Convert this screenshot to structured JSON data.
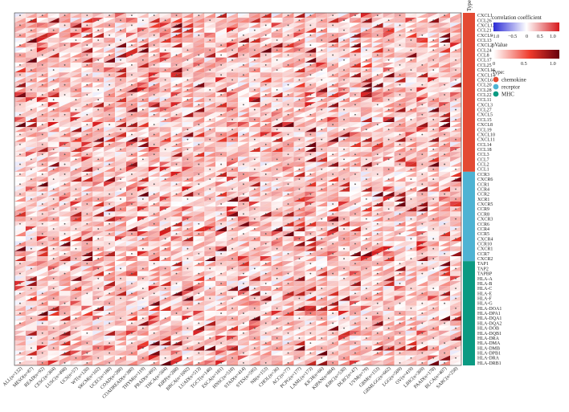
{
  "chart_data": {
    "type": "heatmap",
    "title": "",
    "xlabel": "",
    "ylabel": "",
    "annotation_header": "Type",
    "columns": [
      "ALL(n=132)",
      "MESO(n=87)",
      "READ(n=92)",
      "CESC(n=304)",
      "LUSC(n=498)",
      "UCS(n=57)",
      "WT(n=120)",
      "SKCM(n=102)",
      "UCEC(n=180)",
      "COAD(n=288)",
      "COADREAD(n=380)",
      "THYM(n=119)",
      "PRAD(n=495)",
      "THCA(n=504)",
      "KIRP(n=288)",
      "BRCA(n=1092)",
      "LUAD(n=513)",
      "TGCT(n=148)",
      "ESCA(n=181)",
      "HNSC(n=518)",
      "STAD(n=414)",
      "STES(n=595)",
      "NB(n=153)",
      "CHOL(n=36)",
      "ACC(n=77)",
      "PCPG(n=177)",
      "LAML(n=173)",
      "KICH(n=66)",
      "KIPAN(n=884)",
      "KIRC(n=530)",
      "DLBC(n=47)",
      "UVM(n=79)",
      "GBM(n=153)",
      "GBMLGG(n=662)",
      "LGG(n=509)",
      "OV(n=419)",
      "LIHC(n=369)",
      "PAAD(n=178)",
      "BLCA(n=407)",
      "SARC(n=258)"
    ],
    "rows": [
      "CXCL1",
      "CCL26",
      "CXCL12",
      "CCL21",
      "CXCL9",
      "CCL13",
      "CXCL2",
      "CCL24",
      "CCL8",
      "CCL17",
      "CCL25",
      "CXCL16",
      "CXCL14",
      "CXCL6",
      "CCL20",
      "CCL28",
      "CCL22",
      "CCL11",
      "CXCL3",
      "CCL27",
      "CXCL5",
      "CCL15",
      "CXCL8",
      "CCL19",
      "CXCL10",
      "CXCL11",
      "CCL14",
      "CCL18",
      "CCL3",
      "CCL7",
      "CCL2",
      "CCL1",
      "CCR3",
      "CXCR6",
      "CCR1",
      "CCR4",
      "CCR2",
      "XCR1",
      "CXCR5",
      "CCR9",
      "CCR8",
      "CXCR3",
      "CCR6",
      "CCR4",
      "CCR5",
      "CXCR4",
      "CCR10",
      "CXCR1",
      "CCR7",
      "CXCR2",
      "TAP1",
      "TAP2",
      "TAPBP",
      "HLA-A",
      "HLA-B",
      "HLA-C",
      "HLA-E",
      "HLA-F",
      "HLA-G",
      "HLA-DOA1",
      "HLA-DPA1",
      "HLA-DQA1",
      "HLA-DQA2",
      "HLA-DOB",
      "HLA-DQB1",
      "HLA-DRA",
      "HLA-DMA",
      "HLA-DMB",
      "HLA-DPB1",
      "HLA-DRA",
      "HLA-DRB1"
    ],
    "row_groups": [
      {
        "type": "chemokine",
        "count": 32,
        "color": "#e34a33"
      },
      {
        "type": "receptor",
        "count": 18,
        "color": "#4eb3d3"
      },
      {
        "type": "MHC",
        "count": 21,
        "color": "#0b9a82"
      }
    ],
    "cell_encoding": "upper-left triangle color = correlation coefficient; lower-right triangle color = pValue; grey dot = not significant",
    "legend": {
      "correlation": {
        "title": "correlation coefficient",
        "ticks": [
          "−1.0",
          "−0.5",
          "0",
          "0.5",
          "1.0"
        ],
        "range": [
          -1.0,
          1.0
        ],
        "colors": [
          "#2b2bd6",
          "#ffffff",
          "#d7191c"
        ]
      },
      "pvalue": {
        "title": "pValue",
        "ticks": [
          "0",
          "0.5",
          "1.0"
        ],
        "range": [
          0,
          1.0
        ],
        "colors": [
          "#ffffff",
          "#ef3b2c",
          "#67000d"
        ]
      },
      "type": {
        "title": "Type:",
        "entries": [
          {
            "label": "chemokine",
            "color": "#e34a33"
          },
          {
            "label": "receptor",
            "color": "#4eb3d3"
          },
          {
            "label": "MHC",
            "color": "#0b9a82"
          }
        ]
      }
    }
  }
}
